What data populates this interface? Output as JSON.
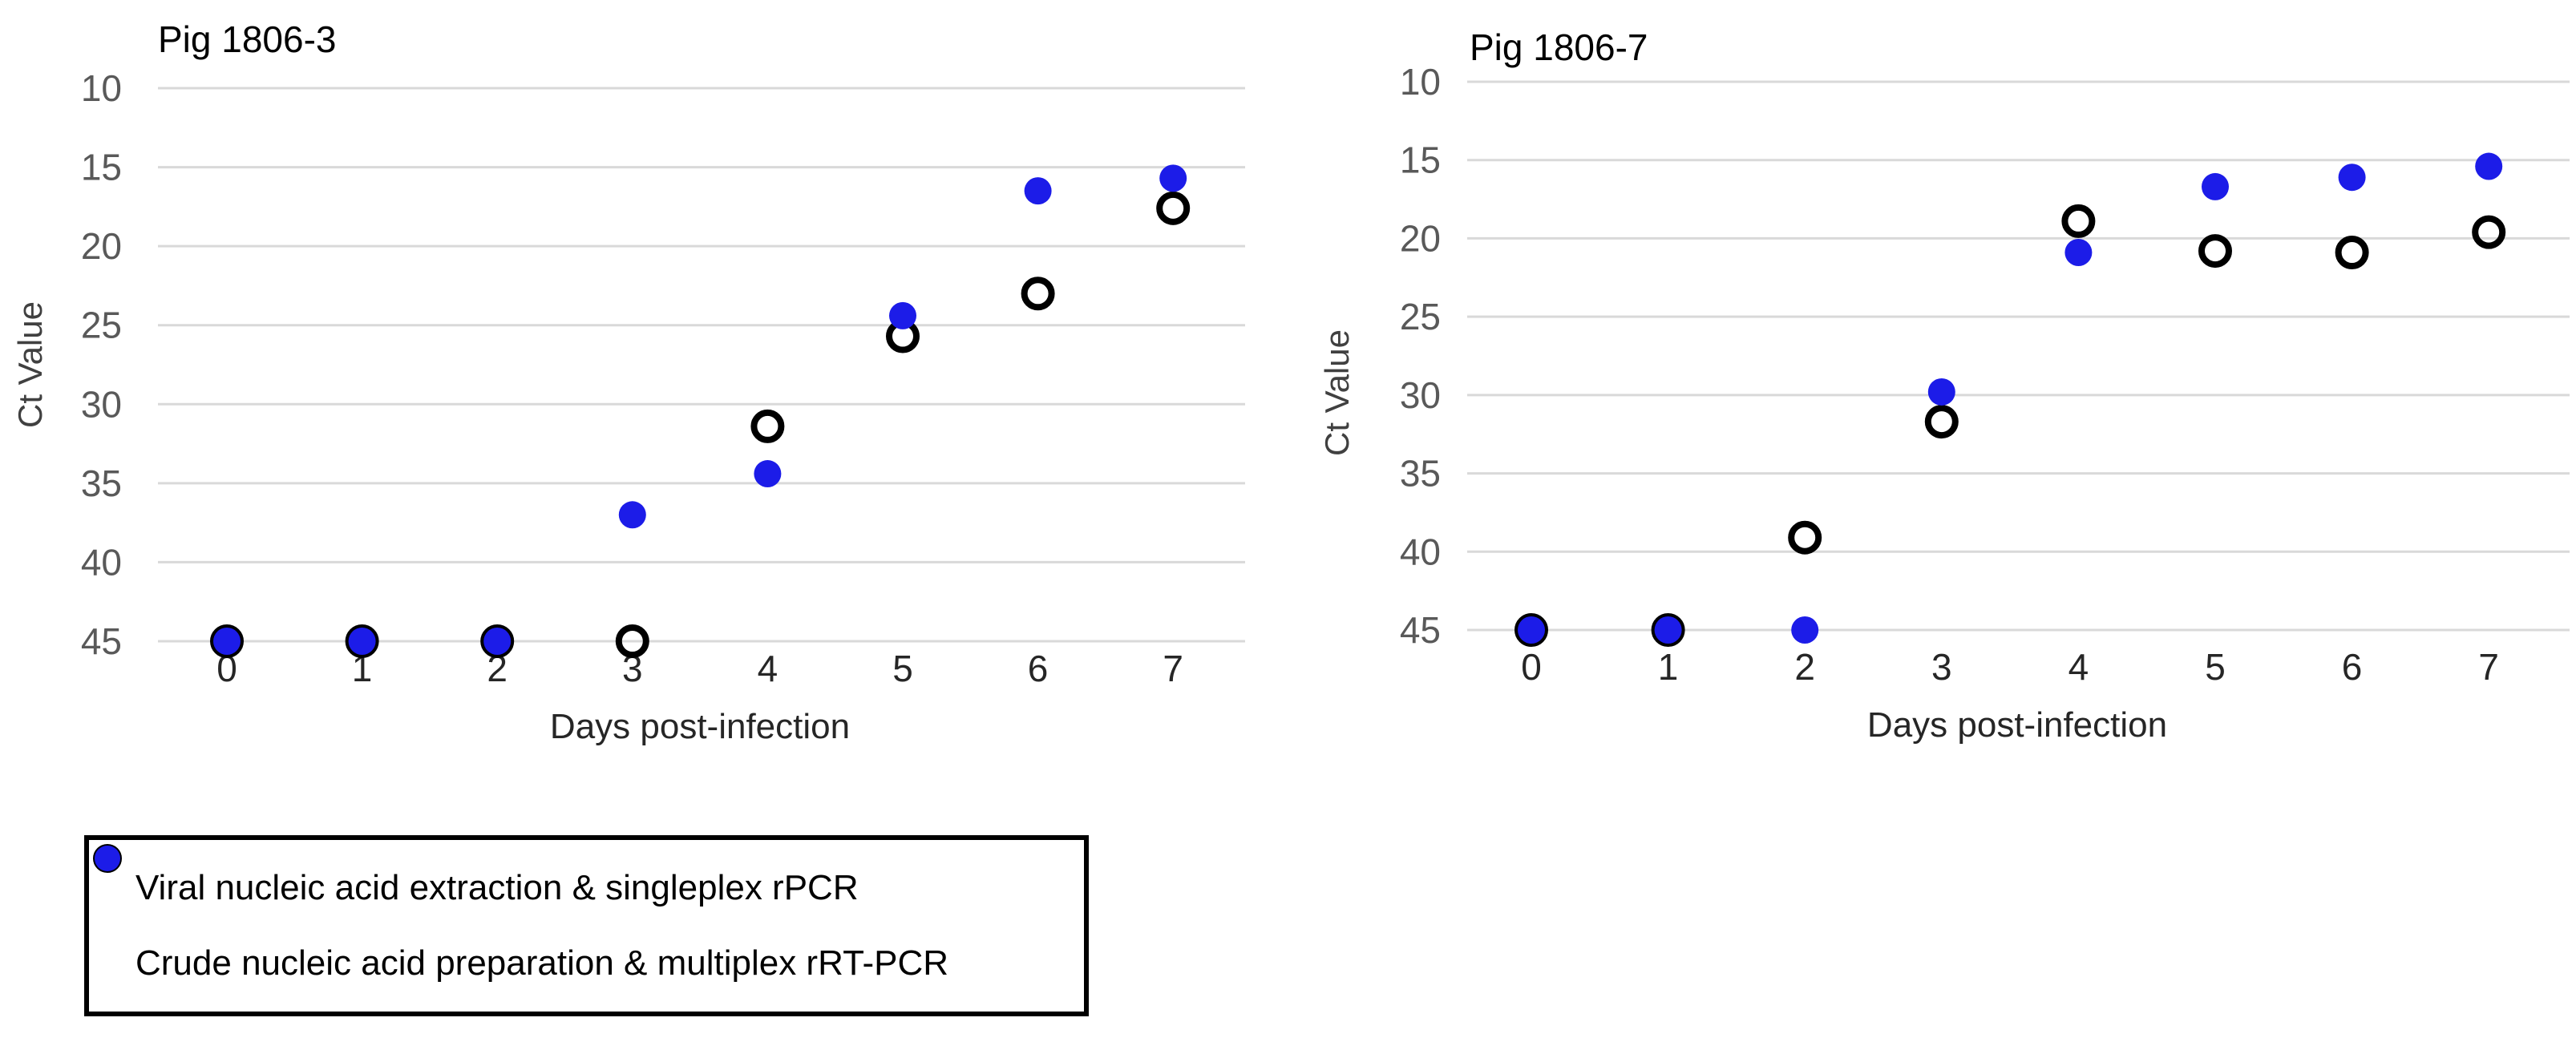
{
  "figure": {
    "background": "#ffffff",
    "xlabel": "Days post-infection",
    "ylabel": "Ct Value"
  },
  "colors": {
    "blue_marker": "#1c1ce8",
    "open_marker_stroke": "#000000",
    "gridline": "#d9d9d9",
    "y_tick_label": "#595959",
    "x_tick_label": "#262626",
    "axis_title": "#404040",
    "chart_title": "#000000",
    "legend_border": "#000000"
  },
  "legend": {
    "position": "bottom-left",
    "items": [
      {
        "marker": "open-circle",
        "label": "Viral nucleic acid extraction & singleplex rPCR"
      },
      {
        "marker": "filled-circle",
        "label": "Crude nucleic acid preparation & multiplex rRT-PCR"
      }
    ]
  },
  "chart_data": [
    {
      "type": "scatter",
      "title": "Pig 1806-3",
      "xlabel": "Days post-infection",
      "ylabel": "Ct Value",
      "x": [
        0,
        1,
        2,
        3,
        4,
        5,
        6,
        7
      ],
      "y_ticks": [
        10,
        15,
        20,
        25,
        30,
        35,
        40,
        45
      ],
      "ylim": [
        10,
        45
      ],
      "y_axis_reversed": true,
      "grid": true,
      "series": [
        {
          "name": "Viral nucleic acid extraction & singleplex rPCR",
          "marker": "open-circle",
          "values": [
            45,
            45,
            45,
            45,
            31.4,
            25.7,
            23.0,
            17.6
          ]
        },
        {
          "name": "Crude nucleic acid preparation & multiplex rRT-PCR",
          "marker": "filled-circle",
          "values": [
            45,
            45,
            45,
            37.0,
            34.4,
            24.4,
            16.5,
            15.7
          ]
        }
      ]
    },
    {
      "type": "scatter",
      "title": "Pig 1806-7",
      "xlabel": "Days post-infection",
      "ylabel": "Ct Value",
      "x": [
        0,
        1,
        2,
        3,
        4,
        5,
        6,
        7
      ],
      "y_ticks": [
        10,
        15,
        20,
        25,
        30,
        35,
        40,
        45
      ],
      "ylim": [
        10,
        45
      ],
      "y_axis_reversed": true,
      "grid": true,
      "series": [
        {
          "name": "Viral nucleic acid extraction & singleplex rPCR",
          "marker": "open-circle",
          "values": [
            45,
            45,
            39.1,
            31.7,
            18.9,
            20.8,
            20.9,
            19.6
          ]
        },
        {
          "name": "Crude nucleic acid preparation & multiplex rRT-PCR",
          "marker": "filled-circle",
          "values": [
            45,
            45,
            45,
            29.8,
            20.9,
            16.7,
            16.1,
            15.4
          ]
        }
      ]
    }
  ]
}
